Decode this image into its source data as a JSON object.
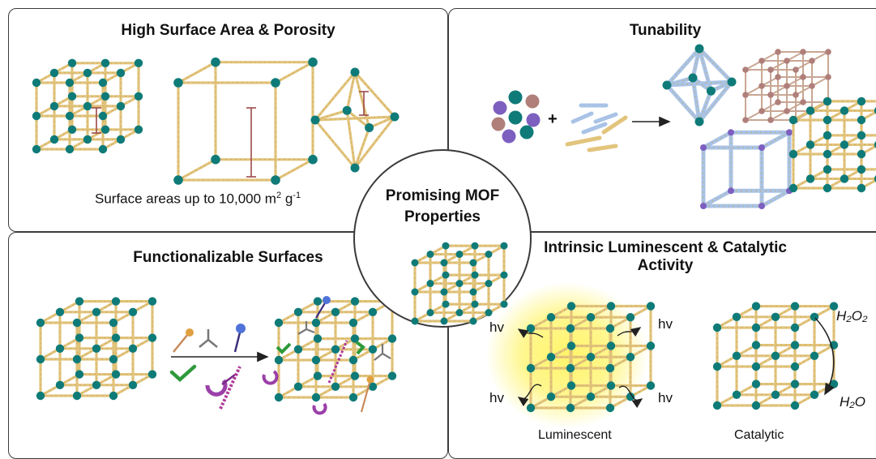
{
  "panels": {
    "top_left": {
      "title": "High Surface Area & Porosity",
      "caption_prefix": "Surface areas up to 10,000 m",
      "caption_sup1": "2",
      "caption_mid": " g",
      "caption_sup2": "-1"
    },
    "top_right": {
      "title": "Tunability",
      "plus": "+"
    },
    "bottom_left": {
      "title": "Functionalizable Surfaces"
    },
    "bottom_right": {
      "title_line1": "Intrinsic Luminescent & Catalytic",
      "title_line2": "Activity",
      "hv": "hv",
      "luminescent": "Luminescent",
      "catalytic": "Catalytic",
      "h2o2": "H₂O₂",
      "h2o": "H₂O"
    }
  },
  "center": {
    "line1": "Promising MOF",
    "line2": "Properties"
  },
  "colors": {
    "node": "#0f7b78",
    "linker": "#e2c47c",
    "pore": "#9c4a4a",
    "blue_linker": "#a9c3e6",
    "purple": "#7d5fc0",
    "brown": "#b07f7a",
    "glow": "#fff46a"
  }
}
